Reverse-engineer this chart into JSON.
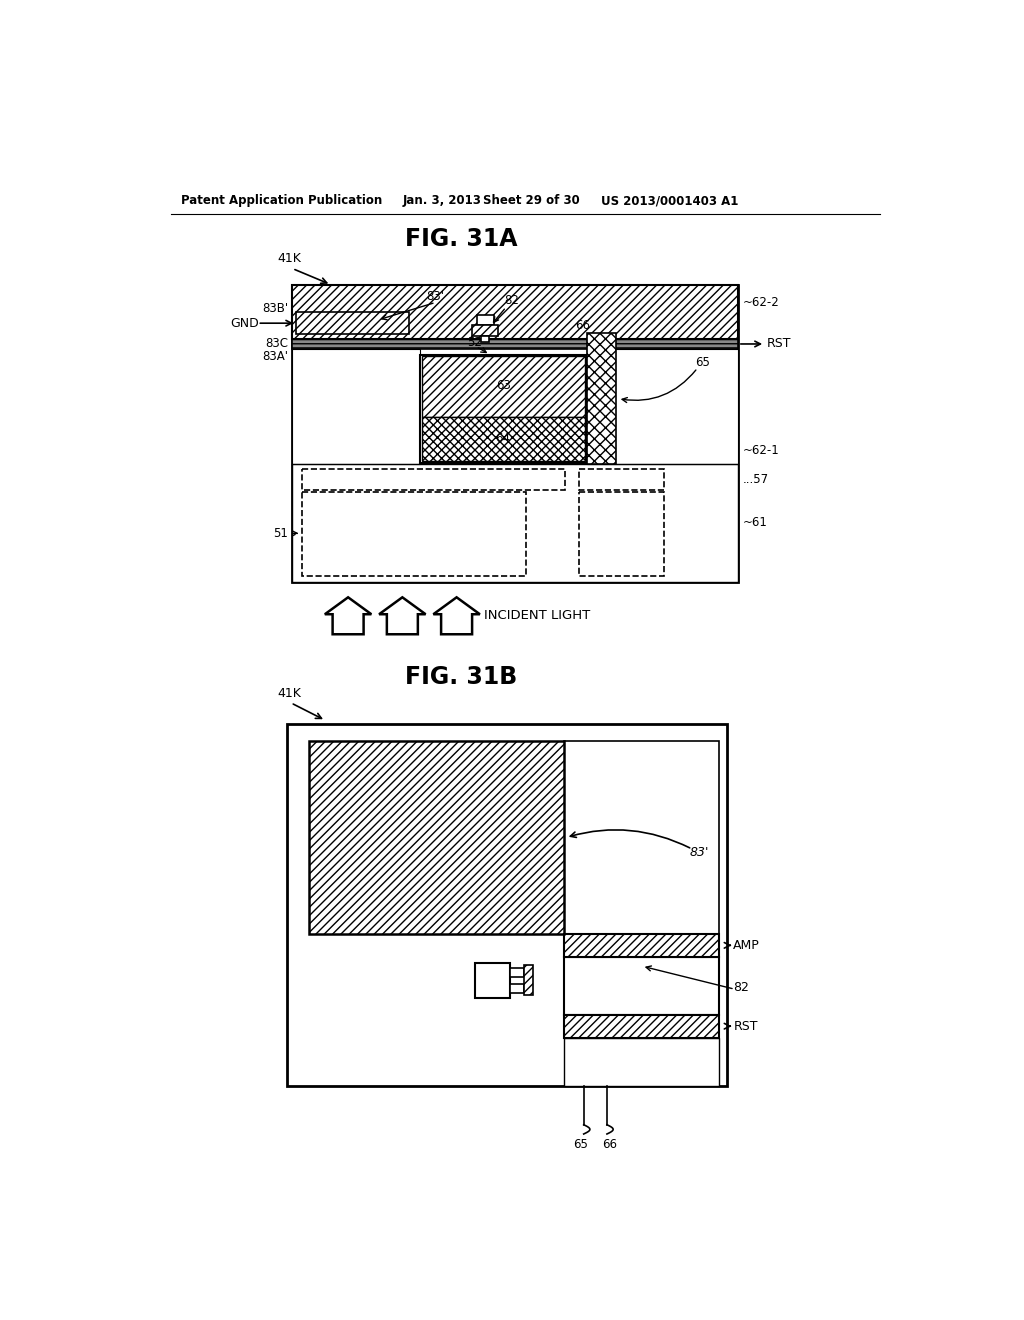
{
  "bg_color": "#ffffff",
  "header_text": "Patent Application Publication",
  "header_date": "Jan. 3, 2013",
  "header_sheet": "Sheet 29 of 30",
  "header_patent": "US 2013/0001403 A1",
  "fig31a_title": "FIG. 31A",
  "fig31b_title": "FIG. 31B"
}
